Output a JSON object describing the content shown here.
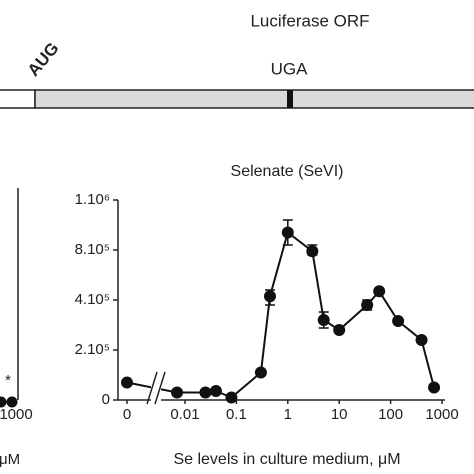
{
  "construct": {
    "title": "Luciferase ORF",
    "start_codon": "AUG",
    "stop_codon": "UGA"
  },
  "left_panel": {
    "tick": "1000",
    "annotation": "*",
    "x_label_fragment": "μM"
  },
  "chart_data": {
    "type": "line",
    "title": "Selenate (SeVI)",
    "x_label": "Se levels in culture medium, μM",
    "x": [
      0,
      0.007,
      0.025,
      0.04,
      0.08,
      0.3,
      0.45,
      1,
      3,
      5,
      10,
      35,
      60,
      140,
      400,
      700
    ],
    "series": [
      {
        "name": "Selenate (SeVI)",
        "color": "#111111",
        "values": [
          70000,
          30000,
          30000,
          36000,
          10000,
          110000,
          430000,
          870000,
          790000,
          320000,
          280000,
          380000,
          470000,
          316000,
          240000,
          50000
        ],
        "errors": [
          null,
          null,
          null,
          null,
          null,
          null,
          50000,
          50000,
          30000,
          32000,
          null,
          20000,
          null,
          null,
          null,
          null
        ]
      }
    ],
    "xscale": "log",
    "axis_break": true,
    "xticks": [
      0,
      0.01,
      0.1,
      1,
      10,
      100,
      1000
    ],
    "ylim": [
      0,
      1000000
    ],
    "yticks": [
      0,
      {
        "value": 200000,
        "label": "2.10⁵"
      },
      {
        "value": 400000,
        "label": "4.10⁵"
      },
      {
        "value": 800000,
        "label": "8.10⁵"
      },
      {
        "value": 1000000,
        "label": "1.10⁶"
      }
    ]
  }
}
